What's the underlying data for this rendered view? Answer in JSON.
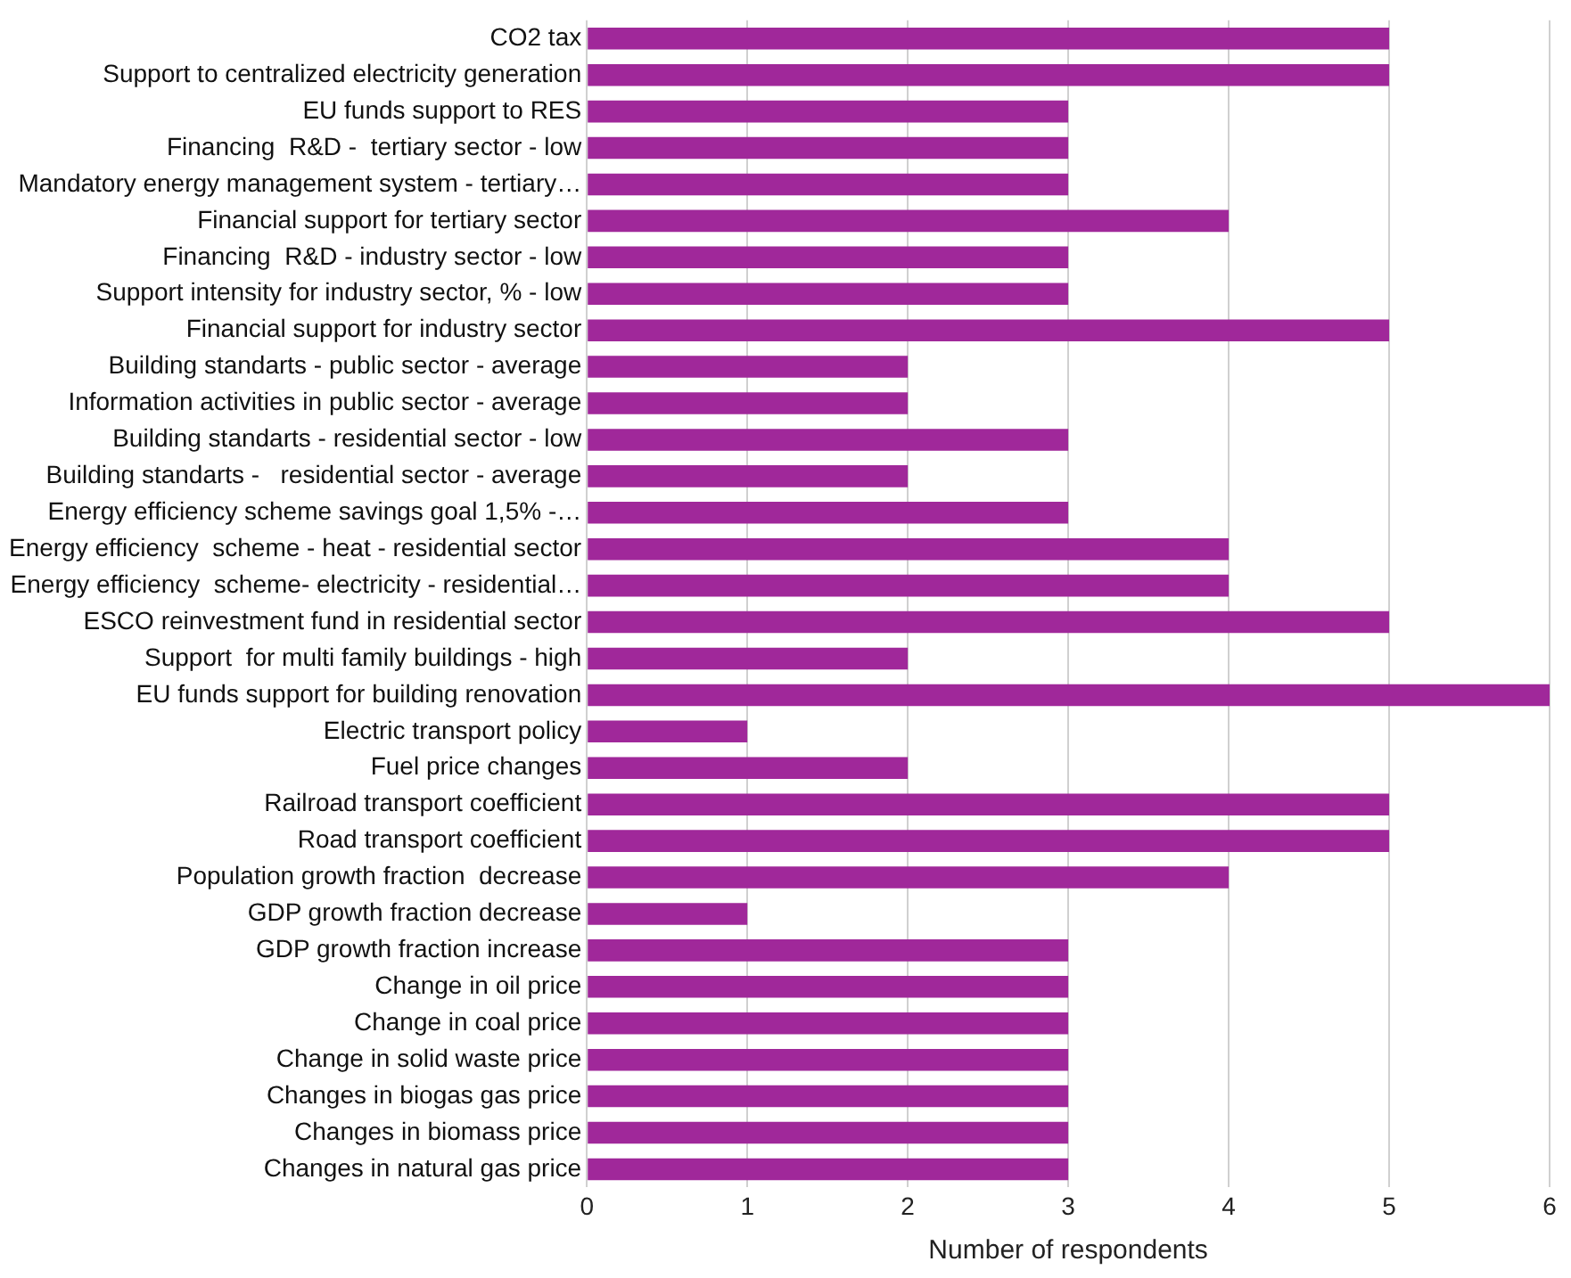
{
  "chart_data": {
    "type": "bar",
    "orientation": "horizontal",
    "xlabel": "Number of respondents",
    "categories": [
      "CO2 tax",
      "Support to centralized electricity generation",
      "EU funds support to RES",
      "Financing  R&D -  tertiary sector - low",
      "Mandatory energy management system - tertiary…",
      "Financial support for tertiary sector",
      "Financing  R&D - industry sector - low",
      "Support intensity for industry sector, % - low",
      "Financial support for industry sector",
      "Building standarts - public sector - average",
      "Information activities in public sector - average",
      "Building standarts - residential sector - low",
      "Building standarts -   residential sector - average",
      "Energy efficiency scheme savings goal 1,5% -…",
      "Energy efficiency  scheme - heat - residential sector",
      "Energy efficiency  scheme- electricity - residential…",
      "ESCO reinvestment fund in residential sector",
      "Support  for multi family buildings - high",
      "EU funds support for building renovation",
      "Electric transport policy",
      "Fuel price changes",
      "Railroad transport coefficient",
      "Road transport coefficient",
      "Population growth fraction  decrease",
      "GDP growth fraction decrease",
      "GDP growth fraction increase",
      "Change in oil price",
      "Change in coal price",
      "Change in solid waste price",
      "Changes in biogas gas price",
      "Changes in biomass price",
      "Changes in natural gas price"
    ],
    "values": [
      5,
      5,
      3,
      3,
      3,
      4,
      3,
      3,
      5,
      2,
      2,
      3,
      2,
      3,
      4,
      4,
      5,
      2,
      6,
      1,
      2,
      5,
      5,
      4,
      1,
      3,
      3,
      3,
      3,
      3,
      3,
      3
    ],
    "color": "#a0289a",
    "xlim": [
      0,
      6
    ],
    "xticks": [
      0,
      1,
      2,
      3,
      4,
      5,
      6
    ],
    "grid": "x"
  }
}
